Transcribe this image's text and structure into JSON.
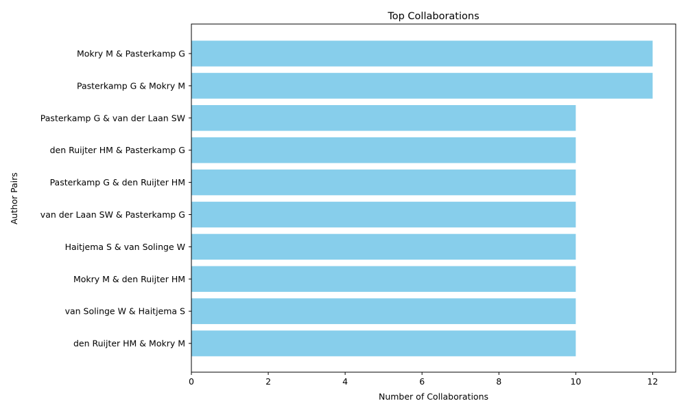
{
  "chart_data": {
    "type": "bar",
    "orientation": "horizontal",
    "title": "Top Collaborations",
    "xlabel": "Number of Collaborations",
    "ylabel": "Author Pairs",
    "categories": [
      "Mokry M & Pasterkamp G",
      "Pasterkamp G & Mokry M",
      "Pasterkamp G & van der Laan SW",
      "den Ruijter HM & Pasterkamp G",
      "Pasterkamp G & den Ruijter HM",
      "van der Laan SW & Pasterkamp G",
      "Haitjema S & van Solinge W",
      "Mokry M & den Ruijter HM",
      "van Solinge W & Haitjema S",
      "den Ruijter HM & Mokry M"
    ],
    "values": [
      12,
      12,
      10,
      10,
      10,
      10,
      10,
      10,
      10,
      10
    ],
    "xlim": [
      0,
      12.6
    ],
    "xticks": [
      0,
      2,
      4,
      6,
      8,
      10,
      12
    ],
    "grid": false,
    "bar_color": "#87ceeb"
  }
}
